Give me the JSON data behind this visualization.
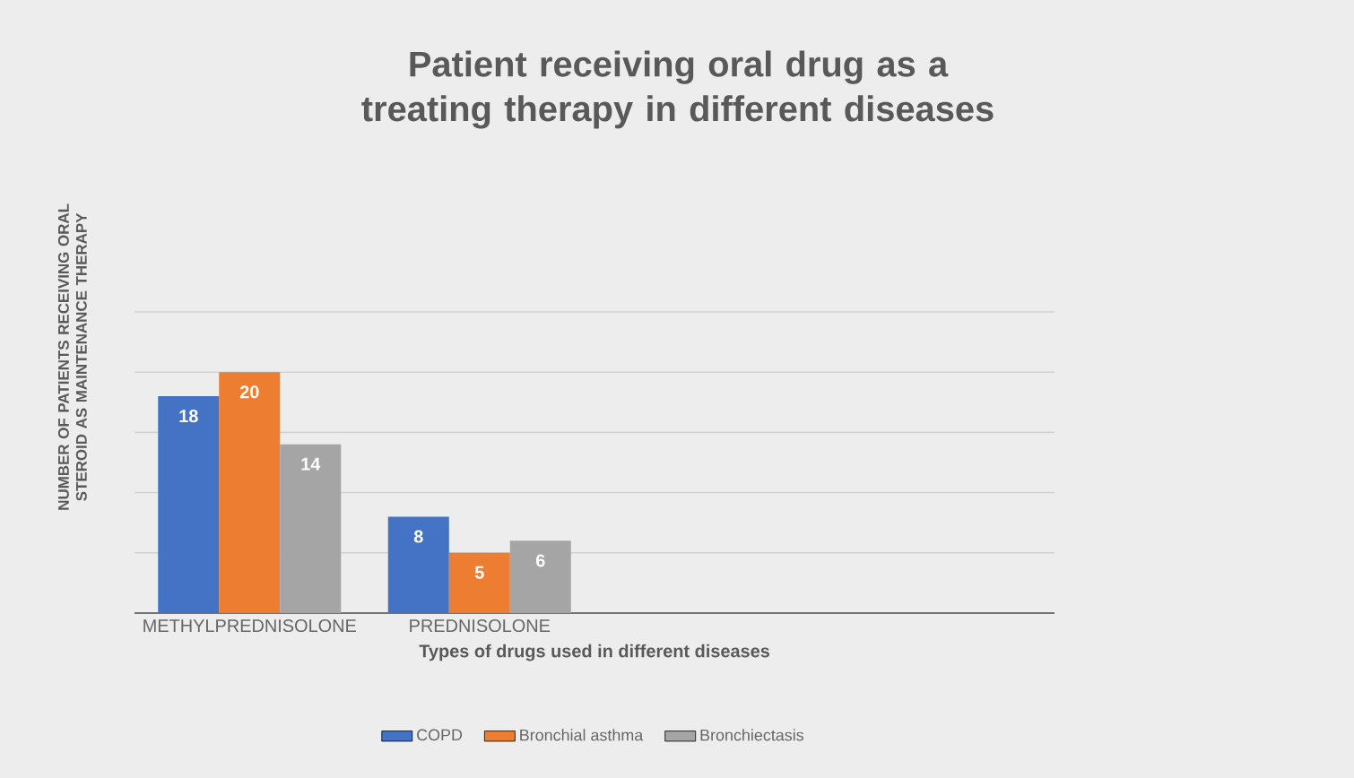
{
  "chart_data": {
    "type": "bar",
    "title": "Patient receiving oral drug as a treating therapy in different diseases",
    "xlabel": "Types of drugs used in different diseases",
    "ylabel": "NUMBER OF PATIENTS RECEIVING ORAL STEROID AS MAINTENANCE THERAPY",
    "categories": [
      "METHYLPREDNISOLONE",
      "PREDNISOLONE",
      null,
      null
    ],
    "series": [
      {
        "name": "COPD",
        "color": "#4472c4",
        "values": [
          18,
          8,
          null,
          null
        ]
      },
      {
        "name": "Bronchial asthma",
        "color": "#ed7d31",
        "values": [
          20,
          5,
          null,
          null
        ]
      },
      {
        "name": "Bronchiectasis",
        "color": "#a5a5a5",
        "values": [
          14,
          6,
          null,
          null
        ]
      }
    ],
    "ylim": [
      0,
      25
    ],
    "yticks": [
      {
        "value": 0,
        "label": null
      },
      {
        "value": 5,
        "label": null
      },
      {
        "value": 10,
        "label": null
      },
      {
        "value": 15,
        "label": null
      },
      {
        "value": 20,
        "label": null
      },
      {
        "value": 25,
        "label": null
      }
    ],
    "grid": "y",
    "legend": "bottom",
    "data_labels": true
  }
}
